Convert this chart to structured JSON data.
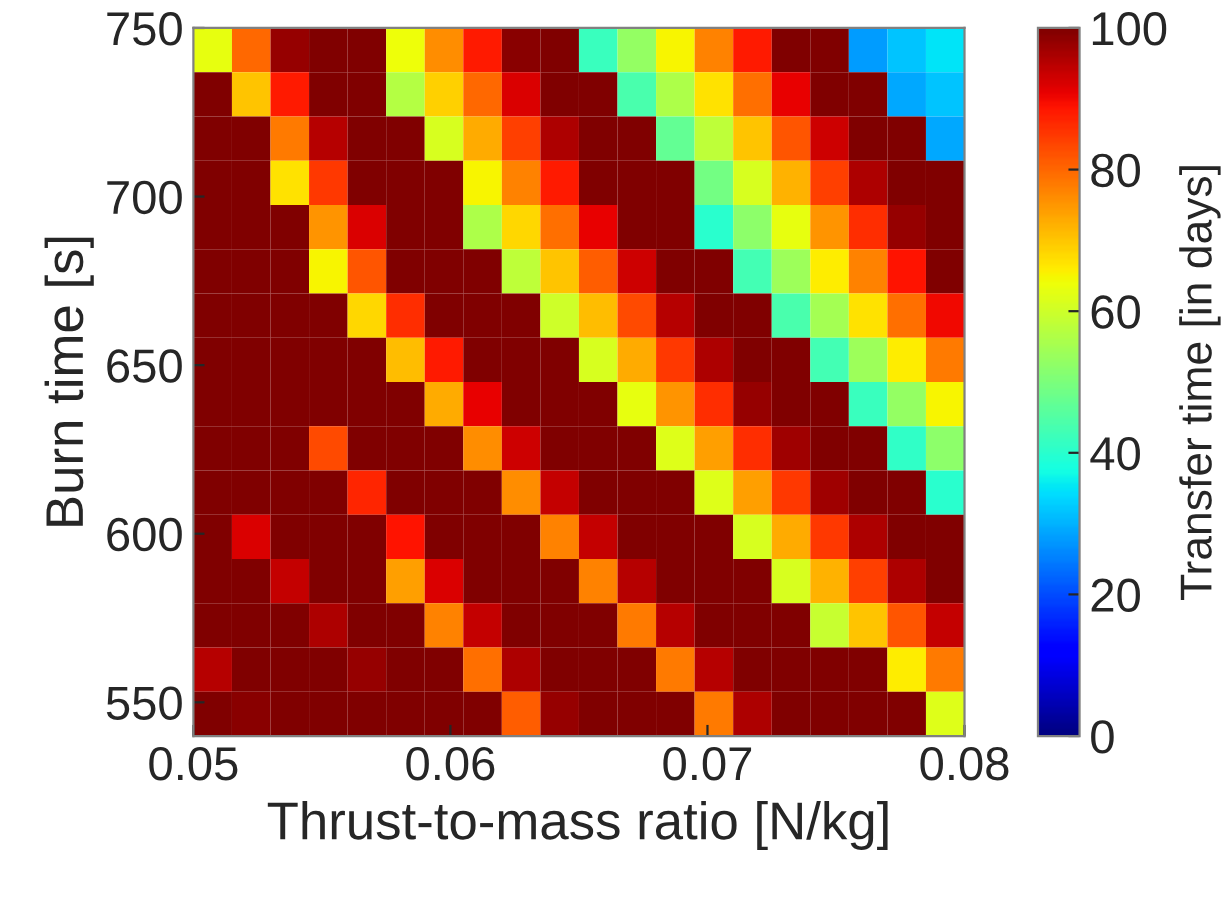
{
  "chart_data": {
    "type": "heatmap",
    "xlabel": "Thrust-to-mass ratio [N/kg]",
    "ylabel": "Burn time [s]",
    "clabel": "Transfer time [in days]",
    "x": [
      0.05075,
      0.05225,
      0.05375,
      0.05525,
      0.05675,
      0.05825,
      0.05975,
      0.06125,
      0.06275,
      0.06425,
      0.06575,
      0.06725,
      0.06875,
      0.07025,
      0.07175,
      0.07325,
      0.07475,
      0.07625,
      0.07775,
      0.07925
    ],
    "y": [
      743.4,
      730.3,
      717.2,
      704.1,
      690.9,
      677.8,
      664.7,
      651.6,
      638.4,
      625.3,
      612.2,
      599.1,
      585.9,
      572.8,
      559.7,
      546.6
    ],
    "xlim": [
      0.05,
      0.08
    ],
    "xticks": [
      0.05,
      0.06,
      0.07,
      0.08
    ],
    "ylim": [
      540,
      750
    ],
    "yticks": [
      550,
      600,
      650,
      700,
      750
    ],
    "clim": [
      0,
      100
    ],
    "cticks": [
      0,
      20,
      40,
      60,
      80,
      100
    ],
    "cells": [
      [
        63,
        80,
        98,
        100,
        100,
        64,
        76,
        88,
        99,
        100,
        42,
        53,
        65,
        77,
        88,
        100,
        100,
        28,
        32,
        35
      ],
      [
        100,
        70,
        88,
        100,
        100,
        57,
        69,
        80,
        92,
        100,
        100,
        44,
        56,
        67,
        79,
        91,
        100,
        100,
        29,
        32
      ],
      [
        100,
        100,
        78,
        95,
        100,
        100,
        61,
        73,
        84,
        96,
        100,
        100,
        47,
        58,
        70,
        82,
        93,
        100,
        100,
        29
      ],
      [
        100,
        100,
        67,
        85,
        100,
        100,
        100,
        65,
        77,
        88,
        100,
        100,
        100,
        49,
        61,
        72,
        84,
        96,
        100,
        100
      ],
      [
        100,
        100,
        100,
        75,
        92,
        100,
        100,
        56,
        68,
        79,
        91,
        100,
        100,
        40,
        52,
        63,
        75,
        86,
        98,
        100
      ],
      [
        100,
        100,
        100,
        65,
        82,
        100,
        100,
        100,
        58,
        70,
        81,
        93,
        100,
        100,
        43,
        54,
        66,
        77,
        89,
        100
      ],
      [
        100,
        100,
        100,
        100,
        68,
        86,
        100,
        100,
        100,
        60,
        71,
        83,
        95,
        100,
        100,
        44,
        55,
        67,
        79,
        90
      ],
      [
        100,
        100,
        100,
        100,
        100,
        71,
        88,
        100,
        100,
        100,
        61,
        73,
        85,
        96,
        100,
        100,
        43,
        54,
        66,
        78
      ],
      [
        100,
        100,
        100,
        100,
        100,
        100,
        73,
        91,
        100,
        100,
        100,
        63,
        75,
        86,
        98,
        100,
        100,
        42,
        53,
        65
      ],
      [
        100,
        100,
        100,
        83,
        100,
        100,
        100,
        76,
        93,
        100,
        100,
        100,
        62,
        74,
        86,
        97,
        100,
        100,
        41,
        52
      ],
      [
        100,
        100,
        100,
        100,
        87,
        100,
        100,
        100,
        76,
        94,
        100,
        100,
        100,
        62,
        74,
        85,
        97,
        100,
        100,
        40
      ],
      [
        100,
        92,
        100,
        100,
        100,
        89,
        100,
        100,
        100,
        77,
        94,
        100,
        100,
        100,
        61,
        73,
        85,
        96,
        100,
        100
      ],
      [
        100,
        100,
        94,
        100,
        100,
        74,
        92,
        100,
        100,
        100,
        77,
        95,
        100,
        100,
        100,
        61,
        72,
        84,
        96,
        100
      ],
      [
        100,
        100,
        100,
        96,
        100,
        100,
        77,
        94,
        100,
        100,
        100,
        78,
        95,
        100,
        100,
        100,
        59,
        70,
        82,
        94
      ],
      [
        95,
        100,
        100,
        100,
        98,
        100,
        100,
        79,
        96,
        100,
        100,
        100,
        78,
        95,
        100,
        100,
        100,
        100,
        66,
        78
      ],
      [
        100,
        99,
        100,
        100,
        100,
        100,
        100,
        100,
        81,
        98,
        100,
        100,
        100,
        78,
        96,
        100,
        100,
        100,
        100,
        62
      ]
    ]
  }
}
